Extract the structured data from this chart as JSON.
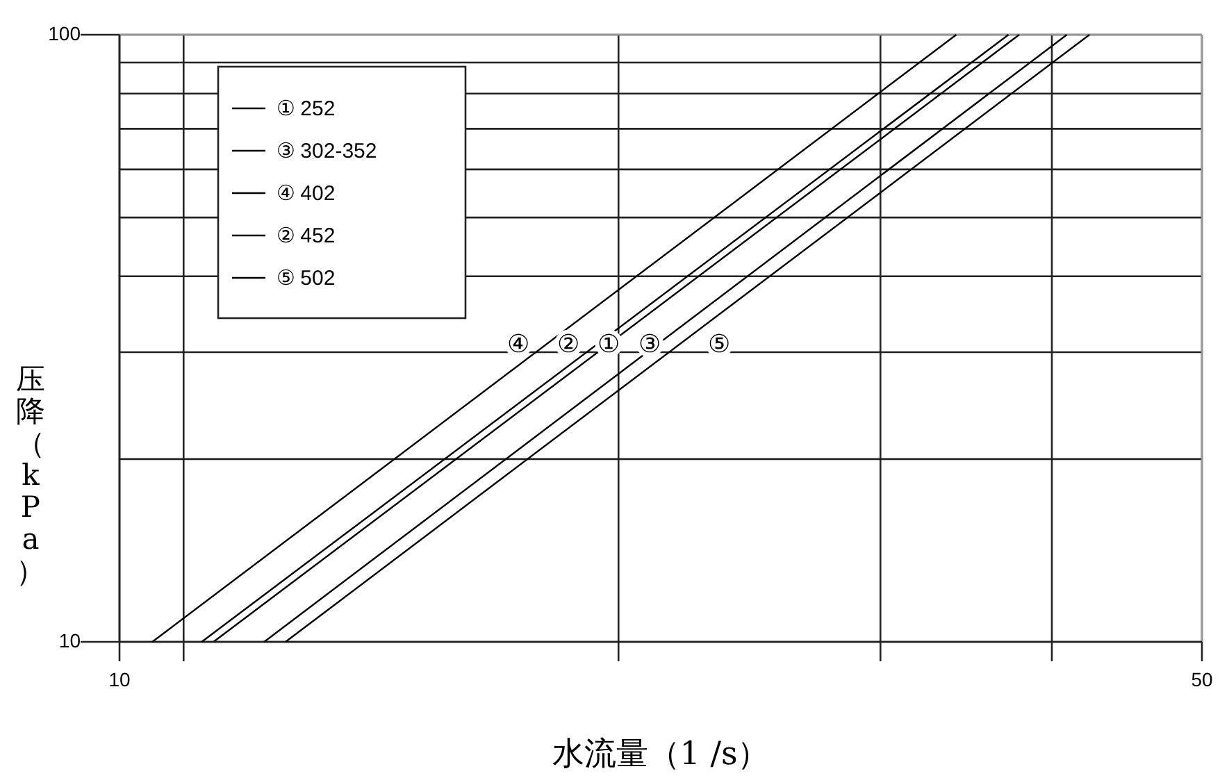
{
  "chart_data": {
    "type": "line",
    "xlabel": "水流量（1 /s）",
    "ylabel": "压降（kPa）",
    "log": "xy",
    "xlim": [
      10,
      50
    ],
    "ylim": [
      10,
      100
    ],
    "xticks": [
      10,
      {
        "value": 11,
        "label": null
      },
      {
        "value": 21,
        "label": null
      },
      {
        "value": 31,
        "label": null
      },
      {
        "value": 40,
        "label": null
      },
      50
    ],
    "yticks": [
      10,
      {
        "value": 20,
        "label": null
      },
      {
        "value": 30,
        "label": null
      },
      {
        "value": 40,
        "label": null
      },
      {
        "value": 50,
        "label": null
      },
      {
        "value": 60,
        "label": null
      },
      {
        "value": 70,
        "label": null
      },
      {
        "value": 80,
        "label": null
      },
      {
        "value": 90,
        "label": null
      },
      100
    ],
    "grid": true,
    "legend": "top left",
    "marker": "none",
    "line_style": "solid",
    "series": [
      {
        "name": "① 252",
        "color": "#000000",
        "x": [
          11.5,
          38.1
        ],
        "values": [
          10,
          100
        ]
      },
      {
        "name": "③ 302-352",
        "color": "#000000",
        "x": [
          12.4,
          40.9
        ],
        "values": [
          10,
          100
        ]
      },
      {
        "name": "④ 402",
        "color": "#000000",
        "x": [
          10.5,
          34.7
        ],
        "values": [
          10,
          100
        ]
      },
      {
        "name": "② 452",
        "color": "#000000",
        "x": [
          11.3,
          37.5
        ],
        "values": [
          10,
          100
        ]
      },
      {
        "name": "⑤ 502",
        "color": "#000000",
        "x": [
          12.8,
          42.3
        ],
        "values": [
          10,
          100
        ]
      }
    ],
    "annotations": [
      {
        "text": "④",
        "x": 18.1,
        "y": 31
      },
      {
        "text": "②",
        "x": 19.5,
        "y": 31
      },
      {
        "text": "①",
        "x": 20.7,
        "y": 31
      },
      {
        "text": "③",
        "x": 22,
        "y": 31
      },
      {
        "text": "⑤",
        "x": 24.4,
        "y": 31
      }
    ]
  }
}
